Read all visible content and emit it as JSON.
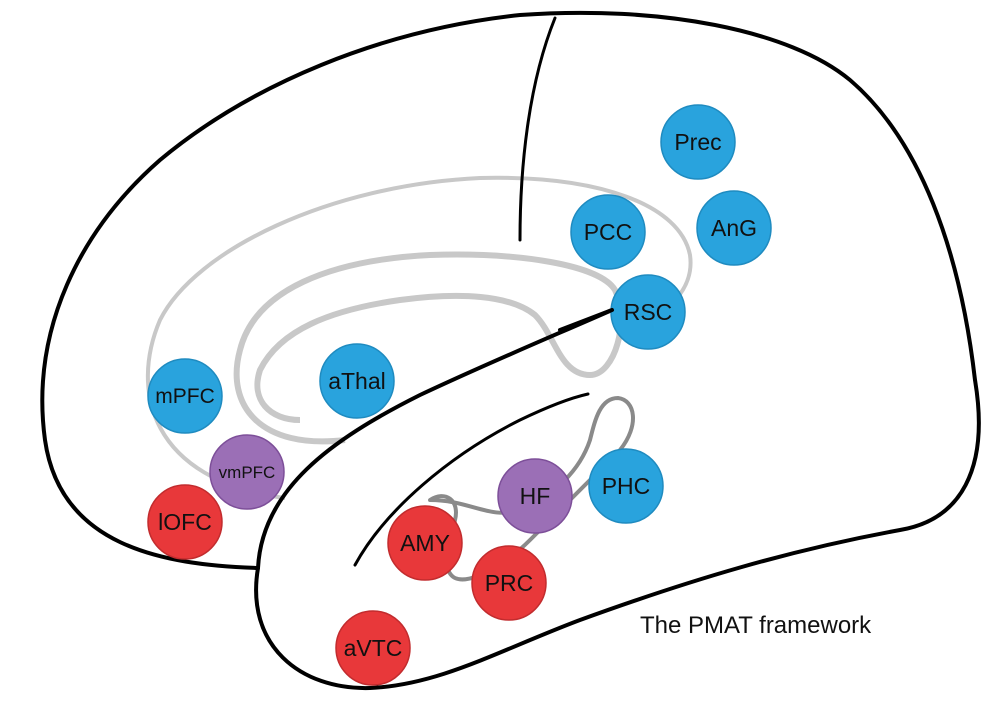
{
  "caption": "The PMAT framework",
  "colors": {
    "blue": "#29a3dd",
    "red": "#e8383a",
    "purple": "#9b6fb6",
    "outline": "#000000",
    "light_gray": "#c8c8c8",
    "mid_gray": "#8a8a8a"
  },
  "regions": {
    "prec": {
      "label": "Prec",
      "group": "blue"
    },
    "ang": {
      "label": "AnG",
      "group": "blue"
    },
    "pcc": {
      "label": "PCC",
      "group": "blue"
    },
    "rsc": {
      "label": "RSC",
      "group": "blue"
    },
    "athal": {
      "label": "aThal",
      "group": "blue"
    },
    "mpfc": {
      "label": "mPFC",
      "group": "blue"
    },
    "phc": {
      "label": "PHC",
      "group": "blue"
    },
    "vmpfc": {
      "label": "vmPFC",
      "group": "purple"
    },
    "hf": {
      "label": "HF",
      "group": "purple"
    },
    "lofc": {
      "label": "lOFC",
      "group": "red"
    },
    "amy": {
      "label": "AMY",
      "group": "red"
    },
    "prc": {
      "label": "PRC",
      "group": "red"
    },
    "avtc": {
      "label": "aVTC",
      "group": "red"
    }
  }
}
